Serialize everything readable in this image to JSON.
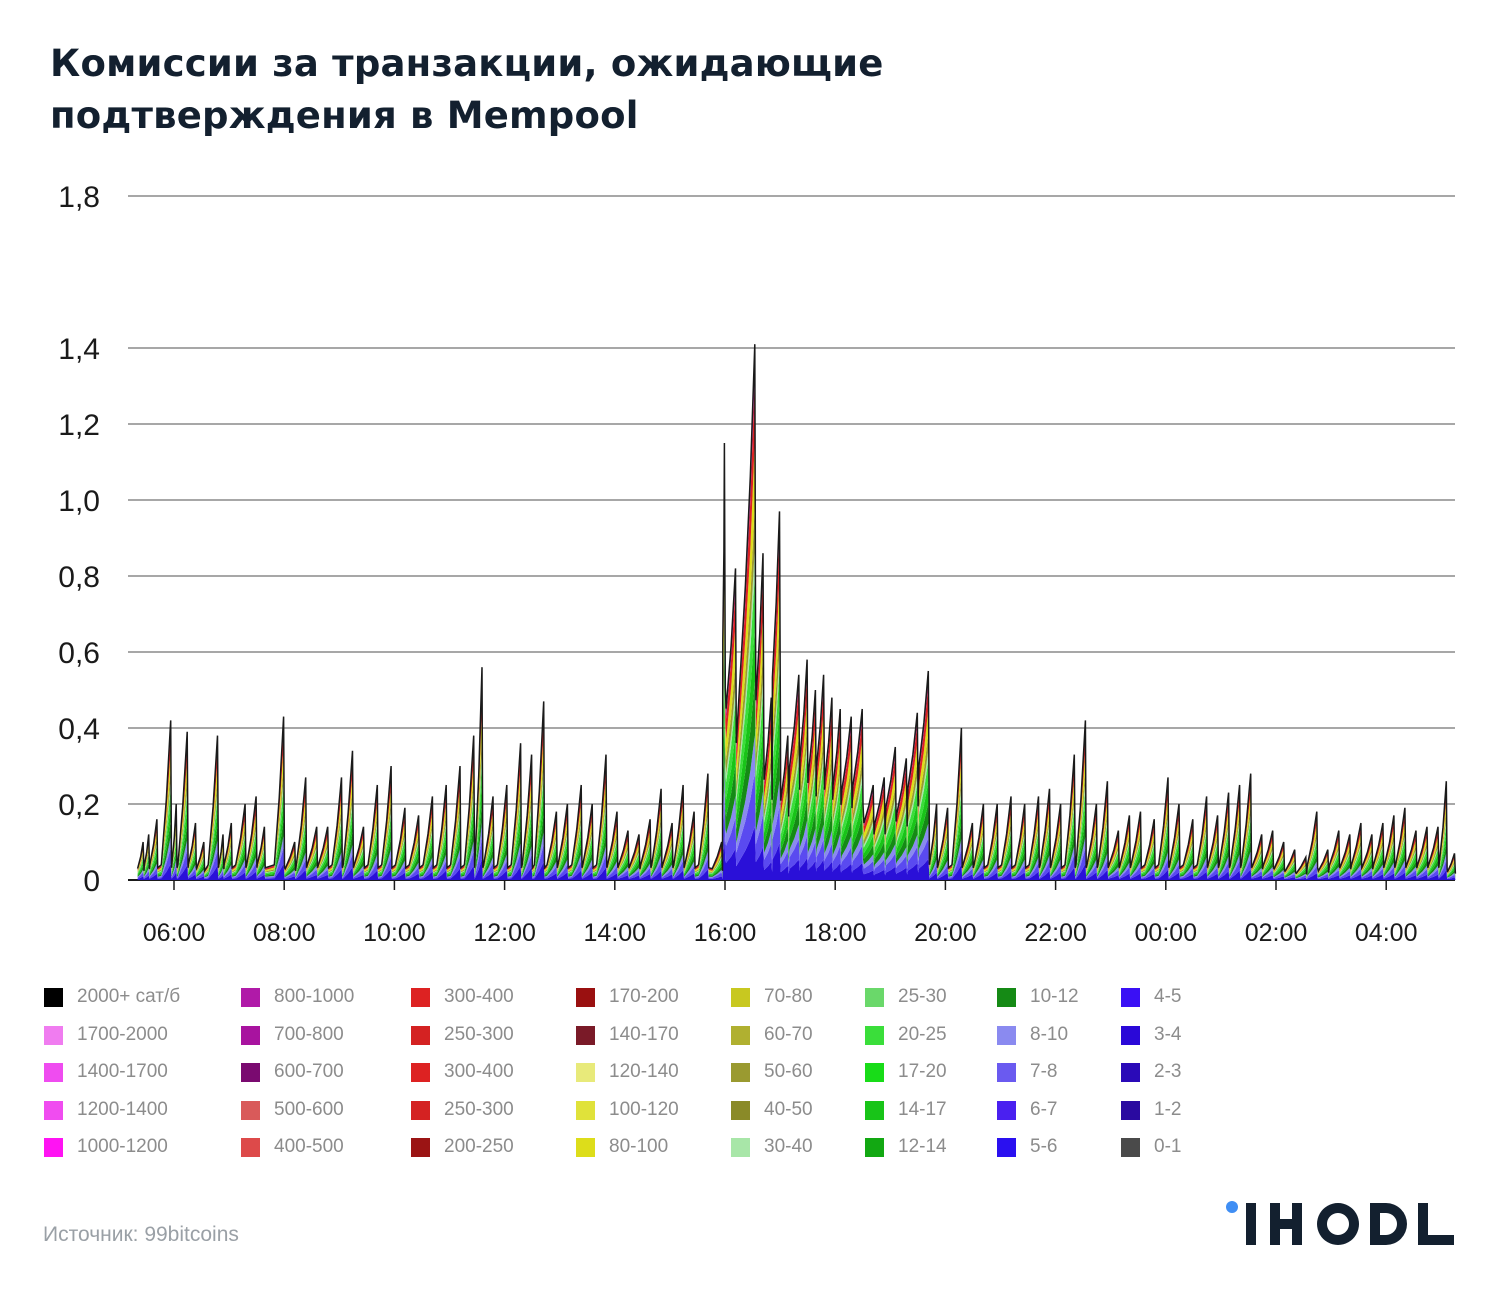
{
  "title": "Комиссии за транзакции, ожидающие подтверждения в Mempool",
  "source": "Источник: 99bitcoins",
  "brand": {
    "logo_text": "IHODL",
    "dot_color": "#3f8ef4",
    "text_color": "#13202f"
  },
  "chart_data": {
    "type": "area",
    "stacked": true,
    "title": "Комиссии за транзакции, ожидающие подтверждения в Mempool",
    "xlabel": "",
    "ylabel": "",
    "ylim": [
      0,
      1.8
    ],
    "yticks": [
      "1,8",
      "1,4",
      "1,2",
      "1,0",
      "0,8",
      "0,6",
      "0,4",
      "0,2",
      "0"
    ],
    "ytick_values": [
      1.8,
      1.4,
      1.2,
      1.0,
      0.8,
      0.6,
      0.4,
      0.2,
      0
    ],
    "xticks": [
      "06:00",
      "08:00",
      "10:00",
      "12:00",
      "14:00",
      "16:00",
      "18:00",
      "20:00",
      "22:00",
      "00:00",
      "02:00",
      "04:00"
    ],
    "x_range_hours": [
      5.4,
      29.3
    ],
    "grid": true,
    "legend_position": "bottom",
    "total_peaks": [
      [
        5.45,
        0.1
      ],
      [
        5.55,
        0.12
      ],
      [
        5.7,
        0.16
      ],
      [
        5.95,
        0.42
      ],
      [
        6.05,
        0.2
      ],
      [
        6.25,
        0.39
      ],
      [
        6.4,
        0.15
      ],
      [
        6.55,
        0.1
      ],
      [
        6.8,
        0.38
      ],
      [
        6.9,
        0.12
      ],
      [
        7.05,
        0.15
      ],
      [
        7.3,
        0.2
      ],
      [
        7.5,
        0.22
      ],
      [
        7.65,
        0.14
      ],
      [
        8.0,
        0.43
      ],
      [
        8.2,
        0.1
      ],
      [
        8.4,
        0.27
      ],
      [
        8.6,
        0.14
      ],
      [
        8.8,
        0.14
      ],
      [
        9.05,
        0.27
      ],
      [
        9.25,
        0.34
      ],
      [
        9.45,
        0.14
      ],
      [
        9.7,
        0.25
      ],
      [
        9.95,
        0.3
      ],
      [
        10.2,
        0.19
      ],
      [
        10.45,
        0.17
      ],
      [
        10.7,
        0.22
      ],
      [
        10.95,
        0.25
      ],
      [
        11.2,
        0.3
      ],
      [
        11.45,
        0.38
      ],
      [
        11.6,
        0.56
      ],
      [
        11.8,
        0.22
      ],
      [
        12.05,
        0.25
      ],
      [
        12.3,
        0.36
      ],
      [
        12.5,
        0.33
      ],
      [
        12.72,
        0.47
      ],
      [
        12.95,
        0.18
      ],
      [
        13.15,
        0.2
      ],
      [
        13.4,
        0.25
      ],
      [
        13.6,
        0.2
      ],
      [
        13.85,
        0.33
      ],
      [
        14.05,
        0.18
      ],
      [
        14.25,
        0.13
      ],
      [
        14.45,
        0.12
      ],
      [
        14.65,
        0.16
      ],
      [
        14.85,
        0.24
      ],
      [
        15.05,
        0.15
      ],
      [
        15.25,
        0.25
      ],
      [
        15.45,
        0.18
      ],
      [
        15.7,
        0.28
      ],
      [
        15.95,
        0.1
      ],
      [
        16.0,
        1.15
      ],
      [
        16.2,
        0.82
      ],
      [
        16.55,
        1.41
      ],
      [
        16.7,
        0.86
      ],
      [
        16.85,
        0.48
      ],
      [
        17.0,
        0.97
      ],
      [
        17.15,
        0.38
      ],
      [
        17.35,
        0.54
      ],
      [
        17.5,
        0.58
      ],
      [
        17.65,
        0.5
      ],
      [
        17.8,
        0.54
      ],
      [
        17.95,
        0.48
      ],
      [
        18.1,
        0.45
      ],
      [
        18.3,
        0.43
      ],
      [
        18.5,
        0.45
      ],
      [
        18.7,
        0.25
      ],
      [
        18.9,
        0.27
      ],
      [
        19.1,
        0.35
      ],
      [
        19.3,
        0.32
      ],
      [
        19.5,
        0.44
      ],
      [
        19.7,
        0.55
      ],
      [
        19.85,
        0.2
      ],
      [
        20.05,
        0.19
      ],
      [
        20.3,
        0.4
      ],
      [
        20.5,
        0.15
      ],
      [
        20.7,
        0.2
      ],
      [
        20.95,
        0.2
      ],
      [
        21.2,
        0.22
      ],
      [
        21.45,
        0.2
      ],
      [
        21.7,
        0.22
      ],
      [
        21.9,
        0.24
      ],
      [
        22.1,
        0.2
      ],
      [
        22.35,
        0.33
      ],
      [
        22.55,
        0.42
      ],
      [
        22.75,
        0.2
      ],
      [
        22.95,
        0.26
      ],
      [
        23.15,
        0.13
      ],
      [
        23.35,
        0.17
      ],
      [
        23.55,
        0.18
      ],
      [
        23.8,
        0.16
      ],
      [
        24.05,
        0.27
      ],
      [
        24.25,
        0.2
      ],
      [
        24.5,
        0.16
      ],
      [
        24.75,
        0.22
      ],
      [
        24.95,
        0.17
      ],
      [
        25.15,
        0.23
      ],
      [
        25.35,
        0.25
      ],
      [
        25.55,
        0.28
      ],
      [
        25.75,
        0.12
      ],
      [
        25.95,
        0.13
      ],
      [
        26.15,
        0.1
      ],
      [
        26.35,
        0.08
      ],
      [
        26.55,
        0.06
      ],
      [
        26.75,
        0.18
      ],
      [
        26.95,
        0.08
      ],
      [
        27.15,
        0.13
      ],
      [
        27.35,
        0.12
      ],
      [
        27.55,
        0.15
      ],
      [
        27.75,
        0.12
      ],
      [
        27.95,
        0.15
      ],
      [
        28.15,
        0.17
      ],
      [
        28.35,
        0.19
      ],
      [
        28.55,
        0.13
      ],
      [
        28.75,
        0.14
      ],
      [
        28.95,
        0.14
      ],
      [
        29.1,
        0.26
      ],
      [
        29.25,
        0.07
      ]
    ],
    "series": [
      {
        "name": "2000+ сат/б",
        "color": "#000000"
      },
      {
        "name": "1700-2000",
        "color": "#f07cf0"
      },
      {
        "name": "1400-1700",
        "color": "#ef4cf0"
      },
      {
        "name": "1200-1400",
        "color": "#f04cf0"
      },
      {
        "name": "1000-1200",
        "color": "#ff13f3"
      },
      {
        "name": "800-1000",
        "color": "#b01aa8"
      },
      {
        "name": "700-800",
        "color": "#a8139f"
      },
      {
        "name": "600-700",
        "color": "#7a0a70"
      },
      {
        "name": "500-600",
        "color": "#d95a5a"
      },
      {
        "name": "400-500",
        "color": "#dd4a4a"
      },
      {
        "name": "300-400",
        "color": "#dd2222"
      },
      {
        "name": "250-300",
        "color": "#d42222"
      },
      {
        "name": "300-400",
        "color": "#dd2222"
      },
      {
        "name": "250-300",
        "color": "#d42222"
      },
      {
        "name": "200-250",
        "color": "#9b1414"
      },
      {
        "name": "170-200",
        "color": "#9a1010"
      },
      {
        "name": "140-170",
        "color": "#7a1a28"
      },
      {
        "name": "120-140",
        "color": "#e8ea7a"
      },
      {
        "name": "100-120",
        "color": "#e0e23a"
      },
      {
        "name": "80-100",
        "color": "#dddd1a"
      },
      {
        "name": "70-80",
        "color": "#c8c820"
      },
      {
        "name": "60-70",
        "color": "#b0b030"
      },
      {
        "name": "50-60",
        "color": "#9a9a30"
      },
      {
        "name": "40-50",
        "color": "#8a8a28"
      },
      {
        "name": "30-40",
        "color": "#a8e6a8"
      },
      {
        "name": "25-30",
        "color": "#6ad86a"
      },
      {
        "name": "20-25",
        "color": "#3ade3a"
      },
      {
        "name": "17-20",
        "color": "#18dc18"
      },
      {
        "name": "14-17",
        "color": "#18c418"
      },
      {
        "name": "12-14",
        "color": "#12a812"
      },
      {
        "name": "10-12",
        "color": "#158a15"
      },
      {
        "name": "8-10",
        "color": "#8a8af0"
      },
      {
        "name": "7-8",
        "color": "#6a5af0"
      },
      {
        "name": "6-7",
        "color": "#4a20f0"
      },
      {
        "name": "5-6",
        "color": "#2a10f0"
      },
      {
        "name": "4-5",
        "color": "#3a10f5"
      },
      {
        "name": "3-4",
        "color": "#2a08d8"
      },
      {
        "name": "2-3",
        "color": "#2a0ab8"
      },
      {
        "name": "1-2",
        "color": "#2a0aa0"
      },
      {
        "name": "0-1",
        "color": "#4a4a4a"
      }
    ]
  }
}
